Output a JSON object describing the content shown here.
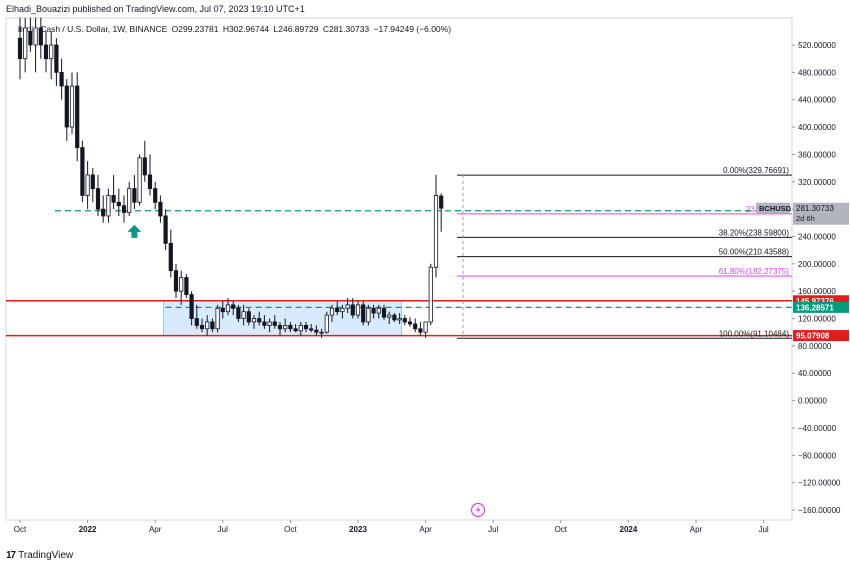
{
  "header": {
    "text": "Elhadi_Bouazizi published on TradingView.com, Jul 07, 2023 19:10 UTC+1"
  },
  "legend": {
    "symbol": "itcoin Cash / U.S. Dollar, 1W, BINANCE",
    "open": "O299.23781",
    "high": "H302.96744",
    "low": "L246.89729",
    "close": "C281.30733",
    "change": "−17.94249 (−6.00%)"
  },
  "footer": {
    "logo": "17",
    "brand": "TradingView"
  },
  "colors": {
    "up": "#ffffff",
    "down": "#131722",
    "support_line": "#e01e1e",
    "dashed": "#089981",
    "fib_main": "#131722",
    "fib_pink": "#e040fb",
    "box_fill": "#bbdefb",
    "arrow": "#089981"
  },
  "chart_data": {
    "type": "candlestick",
    "title": "itcoin Cash / U.S. Dollar, 1W, BINANCE",
    "ylim": [
      -175,
      545
    ],
    "y_ticks": [
      "520.00000",
      "480.00000",
      "440.00000",
      "400.00000",
      "360.00000",
      "320.00000",
      "280.00000",
      "240.00000",
      "200.00000",
      "160.00000",
      "120.00000",
      "80.00000",
      "40.00000",
      "0.00000",
      "−40.00000",
      "−80.00000",
      "−120.00000",
      "−160.00000"
    ],
    "y_tick_values": [
      520,
      480,
      440,
      400,
      360,
      320,
      280,
      240,
      200,
      160,
      120,
      80,
      40,
      0,
      -40,
      -80,
      -120,
      -160
    ],
    "x_labels": [
      "Oct",
      "2022",
      "Apr",
      "Jul",
      "Oct",
      "2023",
      "Apr",
      "Jul",
      "Oct",
      "2024",
      "Apr",
      "Jul"
    ],
    "x_label_weeks": [
      0,
      13,
      26,
      39,
      52,
      65,
      78,
      91,
      104,
      117,
      130,
      143
    ],
    "candles": [
      [
        530,
        560,
        470,
        500
      ],
      [
        500,
        560,
        480,
        545
      ],
      [
        540,
        560,
        510,
        520
      ],
      [
        520,
        560,
        480,
        545
      ],
      [
        545,
        560,
        500,
        520
      ],
      [
        520,
        540,
        480,
        500
      ],
      [
        500,
        540,
        470,
        520
      ],
      [
        520,
        530,
        460,
        480
      ],
      [
        480,
        500,
        440,
        460
      ],
      [
        460,
        470,
        380,
        400
      ],
      [
        400,
        480,
        390,
        460
      ],
      [
        460,
        480,
        350,
        370
      ],
      [
        370,
        380,
        290,
        300
      ],
      [
        300,
        350,
        280,
        330
      ],
      [
        330,
        340,
        290,
        310
      ],
      [
        310,
        330,
        270,
        280
      ],
      [
        280,
        300,
        260,
        270
      ],
      [
        270,
        310,
        260,
        300
      ],
      [
        300,
        330,
        280,
        290
      ],
      [
        290,
        310,
        270,
        285
      ],
      [
        285,
        300,
        260,
        275
      ],
      [
        275,
        320,
        270,
        310
      ],
      [
        310,
        330,
        280,
        290
      ],
      [
        290,
        360,
        285,
        355
      ],
      [
        355,
        380,
        320,
        330
      ],
      [
        330,
        360,
        300,
        310
      ],
      [
        310,
        320,
        280,
        290
      ],
      [
        290,
        300,
        260,
        270
      ],
      [
        270,
        280,
        220,
        230
      ],
      [
        230,
        250,
        180,
        190
      ],
      [
        190,
        200,
        150,
        160
      ],
      [
        160,
        190,
        140,
        180
      ],
      [
        180,
        185,
        150,
        155
      ],
      [
        155,
        160,
        110,
        120
      ],
      [
        120,
        140,
        105,
        110
      ],
      [
        110,
        120,
        100,
        105
      ],
      [
        105,
        125,
        95,
        115
      ],
      [
        115,
        120,
        100,
        105
      ],
      [
        105,
        140,
        100,
        135
      ],
      [
        135,
        145,
        120,
        130
      ],
      [
        130,
        150,
        125,
        140
      ],
      [
        140,
        145,
        125,
        135
      ],
      [
        135,
        140,
        115,
        120
      ],
      [
        120,
        140,
        110,
        130
      ],
      [
        130,
        135,
        110,
        115
      ],
      [
        115,
        125,
        105,
        120
      ],
      [
        120,
        130,
        110,
        115
      ],
      [
        115,
        125,
        105,
        110
      ],
      [
        110,
        120,
        100,
        115
      ],
      [
        115,
        125,
        105,
        110
      ],
      [
        110,
        115,
        95,
        105
      ],
      [
        105,
        120,
        100,
        110
      ],
      [
        110,
        115,
        100,
        105
      ],
      [
        105,
        112,
        100,
        102
      ],
      [
        102,
        115,
        95,
        110
      ],
      [
        110,
        115,
        100,
        105
      ],
      [
        105,
        112,
        100,
        103
      ],
      [
        103,
        110,
        95,
        100
      ],
      [
        100,
        105,
        92,
        100
      ],
      [
        100,
        130,
        98,
        125
      ],
      [
        125,
        140,
        115,
        135
      ],
      [
        135,
        145,
        125,
        130
      ],
      [
        130,
        140,
        120,
        135
      ],
      [
        135,
        150,
        128,
        140
      ],
      [
        140,
        150,
        120,
        125
      ],
      [
        125,
        145,
        120,
        140
      ],
      [
        140,
        145,
        110,
        115
      ],
      [
        115,
        140,
        110,
        135
      ],
      [
        135,
        140,
        120,
        128
      ],
      [
        128,
        140,
        120,
        135
      ],
      [
        135,
        140,
        118,
        122
      ],
      [
        122,
        130,
        112,
        125
      ],
      [
        125,
        128,
        115,
        118
      ],
      [
        118,
        128,
        112,
        120
      ],
      [
        120,
        125,
        110,
        115
      ],
      [
        115,
        122,
        108,
        112
      ],
      [
        112,
        120,
        100,
        105
      ],
      [
        105,
        115,
        95,
        100
      ],
      [
        100,
        110,
        92,
        115
      ],
      [
        115,
        200,
        110,
        195
      ],
      [
        195,
        330,
        180,
        300
      ],
      [
        299.24,
        302.97,
        246.9,
        281.31
      ]
    ],
    "levels": [
      {
        "name": "resistance",
        "value": 145.97376,
        "label": "145.97376"
      },
      {
        "name": "support",
        "value": 95.07908,
        "label": "95.07908"
      },
      {
        "name": "dashed-upper",
        "value": 277.66165,
        "label": "277.66165"
      },
      {
        "name": "dashed-lower",
        "value": 136.28571,
        "label": "136.28571"
      }
    ],
    "fib_levels": [
      {
        "label": "0.00%(329.76691)",
        "value": 329.76691,
        "pink": false
      },
      {
        "label": "23.60%(273",
        "value": 273.0,
        "pink": true
      },
      {
        "label": "38.20%(238.59800)",
        "value": 238.598,
        "pink": false
      },
      {
        "label": "50.00%(210.43588)",
        "value": 210.43588,
        "pink": false
      },
      {
        "label": "61.80%(182.27375)",
        "value": 182.27375,
        "pink": true
      },
      {
        "label": "100.00%(91.10484)",
        "value": 91.10484,
        "pink": false
      }
    ],
    "current_price": {
      "label": "281.30733",
      "symbol": "BCHUSD",
      "countdown": "2d 6h"
    },
    "range_box": {
      "x_start_week": 28,
      "x_end_week": 73,
      "y_low": 95.07908,
      "y_high": 145.97376
    }
  }
}
